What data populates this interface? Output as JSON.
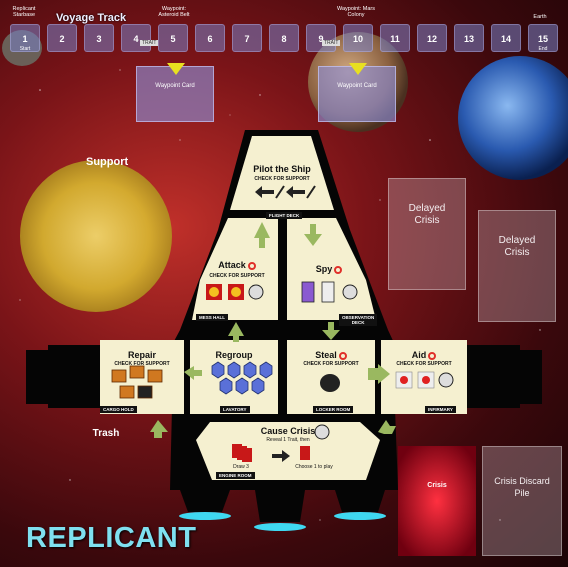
{
  "track": {
    "title": "Voyage Track",
    "cells": [
      "1",
      "2",
      "3",
      "4",
      "5",
      "6",
      "7",
      "8",
      "9",
      "10",
      "11",
      "12",
      "13",
      "14",
      "15"
    ],
    "start_label": "Start",
    "end_label": "End",
    "waypoints": [
      "Waypoint: Asteroid Belt",
      "Waypoint: Mars Colony",
      "Earth"
    ],
    "origin_label": "Replicant Starbase",
    "trait_label": "TRAIT"
  },
  "zones": {
    "waypoint_card_1": "Waypoint Card",
    "waypoint_card_2": "Waypoint Card",
    "support": "Support",
    "delayed_crisis_1": "Delayed Crisis",
    "delayed_crisis_2": "Delayed Crisis",
    "trash": "Trash",
    "crisis": "Crisis",
    "crisis_discard": "Crisis Discard Pile"
  },
  "rooms": {
    "pilot": {
      "title": "Pilot the Ship",
      "sub": "CHECK FOR SUPPORT",
      "tag": "FLIGHT DECK"
    },
    "attack": {
      "title": "Attack",
      "sub": "CHECK FOR SUPPORT",
      "tag": "MESS HALL"
    },
    "spy": {
      "title": "Spy",
      "sub": "",
      "tag": "OBSERVATION DECK"
    },
    "repair": {
      "title": "Repair",
      "sub": "CHECK FOR SUPPORT",
      "tag": "CARGO HOLD"
    },
    "regroup": {
      "title": "Regroup",
      "sub": "",
      "tag": "LAVATORY"
    },
    "steal": {
      "title": "Steal",
      "sub": "CHECK FOR SUPPORT",
      "tag": "LOCKER ROOM"
    },
    "aid": {
      "title": "Aid",
      "sub": "CHECK FOR SUPPORT",
      "tag": "INFIRMARY"
    },
    "cause": {
      "title": "Cause Crisis",
      "sub": "Reveal 1 Trait, then",
      "tag": "ENGINE ROOM",
      "draw": "Draw 3",
      "choose": "Choose 1 to play"
    }
  },
  "logo": "REPLICANT",
  "colors": {
    "accent_text": "#7fe0f0",
    "ship": "#000000",
    "room": "#f5f0d0",
    "engine_glow": "#3fd8f0",
    "support_sun": "#e8d24a",
    "crisis": "#d01020"
  }
}
